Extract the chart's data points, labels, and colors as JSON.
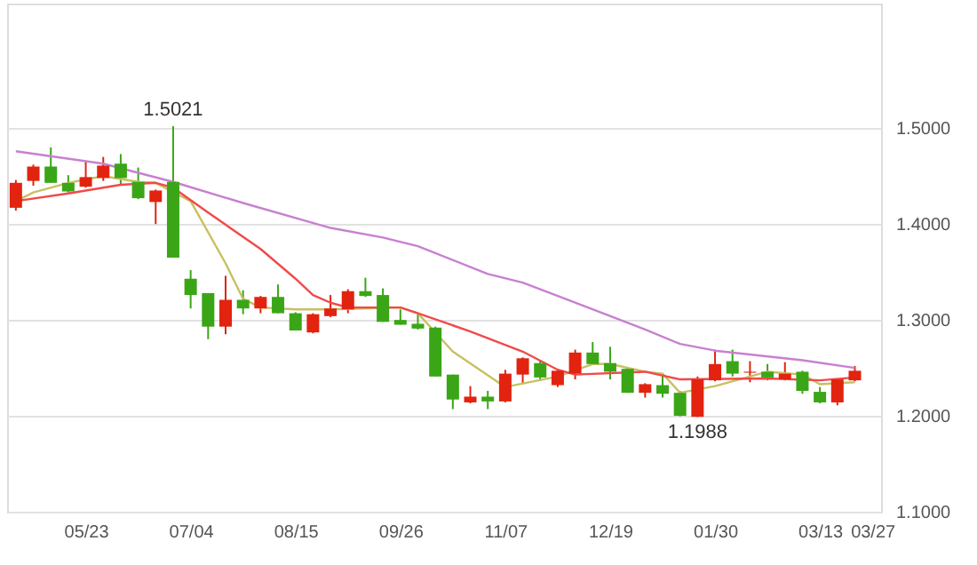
{
  "chart_data": {
    "type": "candlestick",
    "categories": [
      null,
      null,
      null,
      null,
      "05/23",
      null,
      null,
      null,
      null,
      null,
      "07/04",
      null,
      null,
      null,
      null,
      null,
      "08/15",
      null,
      null,
      null,
      null,
      null,
      "09/26",
      null,
      null,
      null,
      null,
      null,
      "11/07",
      null,
      null,
      null,
      null,
      null,
      "12/19",
      null,
      null,
      null,
      null,
      null,
      "01/30",
      null,
      null,
      null,
      null,
      null,
      "03/13",
      null,
      null,
      "03/27"
    ],
    "ylim": [
      1.1,
      1.63
    ],
    "yticks": [
      {
        "value": 1.1,
        "label": "1.1000"
      },
      {
        "value": 1.2,
        "label": "1.2000"
      },
      {
        "value": 1.3,
        "label": "1.3000"
      },
      {
        "value": 1.4,
        "label": "1.4000"
      },
      {
        "value": 1.5,
        "label": "1.5000"
      }
    ],
    "grid": "y",
    "marker": "none",
    "line_style": "solid",
    "annotations": [
      {
        "text": "1.5021",
        "y": 1.5021
      },
      {
        "text": "1.1988",
        "y": 1.1988
      }
    ],
    "series": [
      {
        "ohlc": [
          [
            1.417,
            1.446,
            1.414,
            1.443
          ],
          [
            1.445,
            1.462,
            1.44,
            1.46
          ],
          [
            1.46,
            1.48,
            1.443,
            1.443
          ],
          [
            1.443,
            1.451,
            1.433,
            1.434
          ],
          [
            1.439,
            1.466,
            1.438,
            1.449
          ],
          [
            1.448,
            1.47,
            1.445,
            1.461
          ],
          [
            1.463,
            1.473,
            1.44,
            1.448
          ],
          [
            1.444,
            1.459,
            1.426,
            1.427
          ],
          [
            1.423,
            1.436,
            1.4,
            1.435
          ],
          [
            1.444,
            1.5021,
            1.365,
            1.365
          ],
          [
            1.343,
            1.352,
            1.312,
            1.326
          ],
          [
            1.328,
            1.328,
            1.28,
            1.293
          ],
          [
            1.293,
            1.346,
            1.285,
            1.321
          ],
          [
            1.321,
            1.331,
            1.306,
            1.312
          ],
          [
            1.312,
            1.325,
            1.307,
            1.324
          ],
          [
            1.324,
            1.337,
            1.307,
            1.307
          ],
          [
            1.307,
            1.308,
            1.289,
            1.289
          ],
          [
            1.287,
            1.307,
            1.286,
            1.306
          ],
          [
            1.304,
            1.326,
            1.303,
            1.312
          ],
          [
            1.311,
            1.332,
            1.307,
            1.33
          ],
          [
            1.33,
            1.344,
            1.324,
            1.325
          ],
          [
            1.326,
            1.333,
            1.298,
            1.298
          ],
          [
            1.3,
            1.311,
            1.295,
            1.295
          ],
          [
            1.296,
            1.306,
            1.29,
            1.291
          ],
          [
            1.292,
            1.293,
            1.241,
            1.241
          ],
          [
            1.243,
            1.243,
            1.207,
            1.217
          ],
          [
            1.214,
            1.231,
            1.213,
            1.22
          ],
          [
            1.22,
            1.226,
            1.207,
            1.215
          ],
          [
            1.215,
            1.248,
            1.214,
            1.244
          ],
          [
            1.243,
            1.261,
            1.233,
            1.26
          ],
          [
            1.255,
            1.258,
            1.237,
            1.24
          ],
          [
            1.232,
            1.249,
            1.23,
            1.247
          ],
          [
            1.244,
            1.269,
            1.238,
            1.266
          ],
          [
            1.266,
            1.277,
            1.253,
            1.254
          ],
          [
            1.255,
            1.272,
            1.238,
            1.246
          ],
          [
            1.249,
            1.25,
            1.224,
            1.224
          ],
          [
            1.224,
            1.234,
            1.219,
            1.233
          ],
          [
            1.232,
            1.243,
            1.219,
            1.223
          ],
          [
            1.224,
            1.226,
            1.1995,
            1.2
          ],
          [
            1.199,
            1.241,
            1.1988,
            1.238
          ],
          [
            1.237,
            1.269,
            1.236,
            1.254
          ],
          [
            1.257,
            1.269,
            1.241,
            1.244
          ],
          [
            1.245,
            1.257,
            1.235,
            1.246
          ],
          [
            1.246,
            1.254,
            1.237,
            1.24
          ],
          [
            1.238,
            1.256,
            1.237,
            1.244
          ],
          [
            1.246,
            1.247,
            1.223,
            1.226
          ],
          [
            1.225,
            1.23,
            1.213,
            1.214
          ],
          [
            1.214,
            1.239,
            1.211,
            1.238
          ],
          [
            1.237,
            1.252,
            1.236,
            1.247
          ],
          null
        ],
        "colors": [
          "#e2230f",
          "#e2230f",
          "#3aa617",
          "#3aa617",
          "#e2230f",
          "#e2230f",
          "#3aa617",
          "#3aa617",
          "#e2230f",
          "#3aa617",
          "#3aa617",
          "#3aa617",
          "#e2230f",
          "#3aa617",
          "#e2230f",
          "#3aa617",
          "#3aa617",
          "#e2230f",
          "#e2230f",
          "#e2230f",
          "#3aa617",
          "#3aa617",
          "#3aa617",
          "#3aa617",
          "#3aa617",
          "#3aa617",
          "#e2230f",
          "#3aa617",
          "#e2230f",
          "#e2230f",
          "#3aa617",
          "#e2230f",
          "#e2230f",
          "#3aa617",
          "#3aa617",
          "#3aa617",
          "#e2230f",
          "#3aa617",
          "#3aa617",
          "#e2230f",
          "#e2230f",
          "#3aa617",
          "#e2230f",
          "#3aa617",
          "#e2230f",
          "#3aa617",
          "#3aa617",
          "#e2230f",
          "#e2230f",
          null
        ]
      },
      {
        "type": "line",
        "color": "#c8c060",
        "values": [
          1.424,
          1.433,
          null,
          1.443,
          null,
          1.45,
          null,
          1.444,
          1.443,
          null,
          1.424,
          null,
          1.359,
          1.322,
          1.313,
          null,
          1.311,
          null,
          1.311,
          null,
          null,
          null,
          1.313,
          1.307,
          null,
          1.267,
          null,
          null,
          1.23,
          null,
          null,
          1.241,
          null,
          1.254,
          1.254,
          null,
          1.246,
          1.244,
          1.224,
          null,
          1.231,
          null,
          null,
          1.246,
          null,
          1.243,
          1.233,
          null,
          1.235,
          null
        ]
      },
      {
        "type": "line",
        "color": "#f04a4a",
        "values": [
          1.424,
          null,
          null,
          1.432,
          null,
          null,
          1.441,
          null,
          1.443,
          1.438,
          null,
          1.412,
          null,
          null,
          1.374,
          null,
          1.343,
          1.326,
          1.318,
          1.313,
          null,
          null,
          1.313,
          1.307,
          null,
          null,
          1.288,
          null,
          null,
          1.267,
          null,
          1.248,
          1.243,
          null,
          null,
          null,
          1.246,
          null,
          1.238,
          null,
          null,
          null,
          null,
          1.239,
          null,
          null,
          1.237,
          null,
          1.24,
          null
        ]
      },
      {
        "type": "line",
        "color": "#c880d0",
        "values": [
          1.476,
          null,
          null,
          null,
          null,
          1.463,
          null,
          null,
          null,
          1.444,
          null,
          null,
          null,
          1.422,
          null,
          null,
          null,
          null,
          1.396,
          null,
          null,
          1.386,
          null,
          1.377,
          null,
          null,
          null,
          1.348,
          null,
          1.339,
          null,
          null,
          1.318,
          null,
          null,
          null,
          1.29,
          null,
          1.275,
          null,
          1.268,
          null,
          null,
          null,
          null,
          1.258,
          null,
          null,
          1.25,
          null
        ]
      }
    ]
  }
}
